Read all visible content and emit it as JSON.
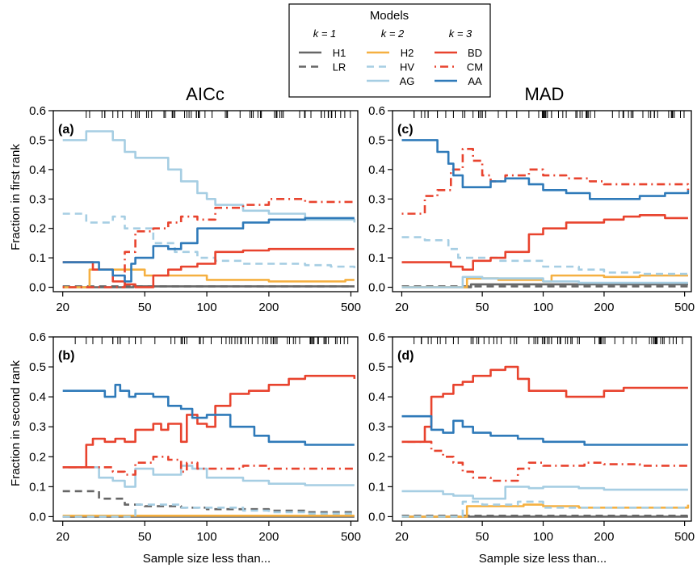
{
  "legend": {
    "title": "Models",
    "groups": [
      {
        "label": "k = 1",
        "models": [
          "H1",
          "LR"
        ]
      },
      {
        "label": "k = 2",
        "models": [
          "H2",
          "HV",
          "AG"
        ]
      },
      {
        "label": "k = 3",
        "models": [
          "BD",
          "CM",
          "AA"
        ]
      }
    ]
  },
  "column_titles": [
    "AICc",
    "MAD"
  ],
  "ylabels": [
    "Fraction in first rank",
    "Fraction in second rank"
  ],
  "xlabel": "Sample size less than...",
  "styles": {
    "H1": {
      "color": "#666666",
      "dash": "solid"
    },
    "LR": {
      "color": "#666666",
      "dash": "dashed"
    },
    "H2": {
      "color": "#f5b041",
      "dash": "solid"
    },
    "HV": {
      "color": "#a6cee3",
      "dash": "dashed"
    },
    "AG": {
      "color": "#a6cee3",
      "dash": "solid"
    },
    "BD": {
      "color": "#e8432e",
      "dash": "solid"
    },
    "CM": {
      "color": "#e8432e",
      "dash": "dotdash"
    },
    "AA": {
      "color": "#2f7ab9",
      "dash": "solid"
    }
  },
  "chart_data": [
    {
      "type": "line",
      "panel": "(a)",
      "x_scale": "log",
      "xlim": [
        18,
        540
      ],
      "ylim": [
        -0.015,
        0.6
      ],
      "xticks": [
        20,
        50,
        100,
        200,
        500
      ],
      "yticks": [
        0.0,
        0.1,
        0.2,
        0.3,
        0.4,
        0.5,
        0.6
      ],
      "series": [
        {
          "name": "H1",
          "x": [
            20,
            42,
            44,
            520
          ],
          "y": [
            0.0,
            0.0,
            0.003,
            0.003
          ]
        },
        {
          "name": "LR",
          "x": [
            20,
            520
          ],
          "y": [
            0.003,
            0.003
          ]
        },
        {
          "name": "H2",
          "x": [
            20,
            25,
            27,
            50,
            100,
            200,
            450,
            470,
            520
          ],
          "y": [
            0.0,
            0.0,
            0.06,
            0.04,
            0.025,
            0.02,
            0.02,
            0.025,
            0.025
          ]
        },
        {
          "name": "HV",
          "x": [
            20,
            24,
            26,
            32,
            35,
            40,
            45,
            55,
            70,
            90,
            110,
            150,
            200,
            300,
            400,
            520
          ],
          "y": [
            0.25,
            0.25,
            0.22,
            0.22,
            0.24,
            0.2,
            0.2,
            0.15,
            0.12,
            0.1,
            0.09,
            0.08,
            0.08,
            0.075,
            0.07,
            0.065
          ]
        },
        {
          "name": "AG",
          "x": [
            20,
            24,
            26,
            30,
            35,
            40,
            45,
            55,
            65,
            75,
            90,
            100,
            110,
            150,
            200,
            300,
            520
          ],
          "y": [
            0.5,
            0.5,
            0.53,
            0.53,
            0.5,
            0.46,
            0.44,
            0.44,
            0.4,
            0.36,
            0.32,
            0.3,
            0.28,
            0.26,
            0.25,
            0.23,
            0.22
          ]
        },
        {
          "name": "BD",
          "x": [
            20,
            28,
            35,
            40,
            45,
            55,
            65,
            75,
            90,
            110,
            150,
            200,
            300,
            520
          ],
          "y": [
            0.085,
            0.06,
            0.02,
            0.01,
            0.0,
            0.04,
            0.06,
            0.07,
            0.08,
            0.12,
            0.125,
            0.13,
            0.13,
            0.13
          ]
        },
        {
          "name": "CM",
          "x": [
            20,
            30,
            40,
            45,
            55,
            65,
            75,
            90,
            110,
            150,
            200,
            300,
            520
          ],
          "y": [
            0.0,
            0.0,
            0.12,
            0.19,
            0.2,
            0.22,
            0.24,
            0.23,
            0.27,
            0.28,
            0.3,
            0.29,
            0.29
          ]
        },
        {
          "name": "AA",
          "x": [
            20,
            27,
            30,
            35,
            40,
            43,
            45,
            55,
            65,
            75,
            90,
            110,
            150,
            200,
            300,
            520
          ],
          "y": [
            0.085,
            0.085,
            0.06,
            0.04,
            0.02,
            0.08,
            0.1,
            0.14,
            0.13,
            0.15,
            0.2,
            0.2,
            0.22,
            0.23,
            0.235,
            0.235
          ]
        }
      ]
    },
    {
      "type": "line",
      "panel": "(c)",
      "x_scale": "log",
      "xlim": [
        18,
        540
      ],
      "ylim": [
        -0.015,
        0.6
      ],
      "xticks": [
        20,
        50,
        100,
        200,
        500
      ],
      "yticks": [
        0.0,
        0.1,
        0.2,
        0.3,
        0.4,
        0.5,
        0.6
      ],
      "series": [
        {
          "name": "H1",
          "x": [
            20,
            42,
            44,
            520
          ],
          "y": [
            0.0,
            0.0,
            0.01,
            0.01
          ]
        },
        {
          "name": "LR",
          "x": [
            20,
            520
          ],
          "y": [
            0.003,
            0.003
          ]
        },
        {
          "name": "H2",
          "x": [
            20,
            40,
            42,
            60,
            100,
            110,
            200,
            300,
            520
          ],
          "y": [
            0.0,
            0.0,
            0.03,
            0.025,
            0.02,
            0.04,
            0.035,
            0.04,
            0.04
          ]
        },
        {
          "name": "HV",
          "x": [
            20,
            24,
            26,
            30,
            34,
            38,
            45,
            60,
            75,
            100,
            150,
            200,
            300,
            520
          ],
          "y": [
            0.17,
            0.17,
            0.16,
            0.16,
            0.13,
            0.1,
            0.1,
            0.09,
            0.09,
            0.07,
            0.06,
            0.05,
            0.045,
            0.04
          ]
        },
        {
          "name": "AG",
          "x": [
            20,
            38,
            40,
            42,
            50,
            75,
            100,
            150,
            520
          ],
          "y": [
            0.0,
            0.0,
            0.035,
            0.035,
            0.03,
            0.03,
            0.02,
            0.015,
            0.015
          ]
        },
        {
          "name": "BD",
          "x": [
            20,
            28,
            35,
            40,
            45,
            55,
            65,
            75,
            85,
            100,
            130,
            170,
            200,
            250,
            300,
            400,
            520
          ],
          "y": [
            0.085,
            0.085,
            0.07,
            0.06,
            0.09,
            0.1,
            0.12,
            0.12,
            0.18,
            0.2,
            0.22,
            0.22,
            0.23,
            0.24,
            0.245,
            0.235,
            0.235
          ]
        },
        {
          "name": "CM",
          "x": [
            20,
            24,
            26,
            30,
            35,
            40,
            45,
            50,
            55,
            65,
            75,
            85,
            100,
            130,
            170,
            200,
            300,
            520
          ],
          "y": [
            0.25,
            0.25,
            0.31,
            0.33,
            0.4,
            0.47,
            0.43,
            0.38,
            0.36,
            0.38,
            0.38,
            0.4,
            0.38,
            0.37,
            0.36,
            0.35,
            0.35,
            0.33
          ]
        },
        {
          "name": "AA",
          "x": [
            20,
            28,
            30,
            34,
            36,
            40,
            45,
            55,
            65,
            75,
            85,
            100,
            130,
            170,
            200,
            300,
            400,
            520
          ],
          "y": [
            0.5,
            0.5,
            0.46,
            0.42,
            0.38,
            0.34,
            0.34,
            0.36,
            0.37,
            0.37,
            0.35,
            0.33,
            0.32,
            0.3,
            0.3,
            0.31,
            0.32,
            0.33
          ]
        }
      ]
    },
    {
      "type": "line",
      "panel": "(b)",
      "x_scale": "log",
      "xlim": [
        18,
        540
      ],
      "ylim": [
        -0.015,
        0.6
      ],
      "xticks": [
        20,
        50,
        100,
        200,
        500
      ],
      "yticks": [
        0.0,
        0.1,
        0.2,
        0.3,
        0.4,
        0.5,
        0.6
      ],
      "series": [
        {
          "name": "H1",
          "x": [
            20,
            520
          ],
          "y": [
            0.0,
            0.0
          ]
        },
        {
          "name": "LR",
          "x": [
            20,
            25,
            30,
            40,
            50,
            75,
            100,
            200,
            300,
            520
          ],
          "y": [
            0.085,
            0.085,
            0.06,
            0.04,
            0.035,
            0.03,
            0.025,
            0.02,
            0.015,
            0.01
          ]
        },
        {
          "name": "H2",
          "x": [
            20,
            520
          ],
          "y": [
            0.003,
            0.003
          ]
        },
        {
          "name": "HV",
          "x": [
            20,
            40,
            45,
            75,
            100,
            150,
            200,
            300,
            520
          ],
          "y": [
            0.0,
            0.0,
            0.04,
            0.03,
            0.03,
            0.02,
            0.015,
            0.01,
            0.01
          ]
        },
        {
          "name": "AG",
          "x": [
            20,
            25,
            30,
            35,
            40,
            45,
            55,
            65,
            75,
            85,
            100,
            150,
            200,
            300,
            520
          ],
          "y": [
            0.165,
            0.165,
            0.13,
            0.12,
            0.1,
            0.16,
            0.14,
            0.14,
            0.17,
            0.16,
            0.13,
            0.12,
            0.11,
            0.105,
            0.105
          ]
        },
        {
          "name": "BD",
          "x": [
            20,
            24,
            26,
            28,
            32,
            36,
            40,
            45,
            55,
            60,
            65,
            75,
            80,
            90,
            100,
            110,
            130,
            160,
            200,
            250,
            300,
            400,
            520
          ],
          "y": [
            0.165,
            0.165,
            0.24,
            0.26,
            0.25,
            0.26,
            0.25,
            0.29,
            0.31,
            0.29,
            0.31,
            0.25,
            0.34,
            0.31,
            0.3,
            0.37,
            0.41,
            0.42,
            0.44,
            0.46,
            0.47,
            0.47,
            0.46
          ]
        },
        {
          "name": "CM",
          "x": [
            20,
            30,
            35,
            40,
            45,
            55,
            65,
            75,
            80,
            90,
            100,
            110,
            150,
            200,
            300,
            520
          ],
          "y": [
            0.165,
            0.165,
            0.15,
            0.14,
            0.18,
            0.2,
            0.19,
            0.15,
            0.18,
            0.16,
            0.16,
            0.16,
            0.17,
            0.16,
            0.16,
            0.16
          ]
        },
        {
          "name": "AA",
          "x": [
            20,
            28,
            32,
            36,
            38,
            42,
            45,
            55,
            65,
            75,
            85,
            100,
            130,
            170,
            200,
            300,
            520
          ],
          "y": [
            0.42,
            0.42,
            0.4,
            0.44,
            0.42,
            0.4,
            0.41,
            0.4,
            0.37,
            0.36,
            0.33,
            0.34,
            0.3,
            0.27,
            0.25,
            0.24,
            0.24
          ]
        }
      ]
    },
    {
      "type": "line",
      "panel": "(d)",
      "x_scale": "log",
      "xlim": [
        18,
        540
      ],
      "ylim": [
        -0.015,
        0.6
      ],
      "xticks": [
        20,
        50,
        100,
        200,
        500
      ],
      "yticks": [
        0.0,
        0.1,
        0.2,
        0.3,
        0.4,
        0.5,
        0.6
      ],
      "series": [
        {
          "name": "H1",
          "x": [
            20,
            520
          ],
          "y": [
            0.0,
            0.0
          ]
        },
        {
          "name": "LR",
          "x": [
            20,
            520
          ],
          "y": [
            0.003,
            0.003
          ]
        },
        {
          "name": "H2",
          "x": [
            20,
            40,
            42,
            75,
            80,
            100,
            150,
            200,
            300,
            520
          ],
          "y": [
            0.0,
            0.0,
            0.035,
            0.035,
            0.04,
            0.035,
            0.03,
            0.03,
            0.03,
            0.04
          ]
        },
        {
          "name": "HV",
          "x": [
            20,
            35,
            40,
            45,
            50,
            60,
            75,
            100,
            150,
            520
          ],
          "y": [
            0.0,
            0.0,
            0.05,
            0.05,
            0.04,
            0.04,
            0.05,
            0.03,
            0.03,
            0.03
          ]
        },
        {
          "name": "AG",
          "x": [
            20,
            28,
            32,
            36,
            40,
            45,
            55,
            65,
            75,
            85,
            100,
            150,
            200,
            300,
            520
          ],
          "y": [
            0.085,
            0.085,
            0.075,
            0.07,
            0.07,
            0.06,
            0.06,
            0.1,
            0.1,
            0.095,
            0.1,
            0.095,
            0.09,
            0.09,
            0.09
          ]
        },
        {
          "name": "BD",
          "x": [
            20,
            24,
            26,
            28,
            32,
            36,
            40,
            45,
            55,
            65,
            75,
            85,
            100,
            130,
            160,
            200,
            250,
            300,
            400,
            520
          ],
          "y": [
            0.25,
            0.25,
            0.3,
            0.4,
            0.41,
            0.44,
            0.45,
            0.47,
            0.49,
            0.5,
            0.46,
            0.42,
            0.42,
            0.4,
            0.4,
            0.42,
            0.43,
            0.43,
            0.43,
            0.43
          ]
        },
        {
          "name": "CM",
          "x": [
            20,
            26,
            28,
            32,
            36,
            40,
            45,
            55,
            65,
            75,
            85,
            100,
            130,
            160,
            200,
            300,
            520
          ],
          "y": [
            0.25,
            0.25,
            0.22,
            0.2,
            0.18,
            0.15,
            0.13,
            0.12,
            0.12,
            0.16,
            0.18,
            0.17,
            0.17,
            0.18,
            0.175,
            0.17,
            0.17
          ]
        },
        {
          "name": "AA",
          "x": [
            20,
            26,
            28,
            32,
            36,
            40,
            45,
            55,
            65,
            75,
            85,
            100,
            130,
            160,
            200,
            300,
            520
          ],
          "y": [
            0.335,
            0.335,
            0.29,
            0.28,
            0.32,
            0.3,
            0.28,
            0.27,
            0.27,
            0.26,
            0.26,
            0.25,
            0.25,
            0.24,
            0.24,
            0.24,
            0.24
          ]
        }
      ]
    }
  ]
}
